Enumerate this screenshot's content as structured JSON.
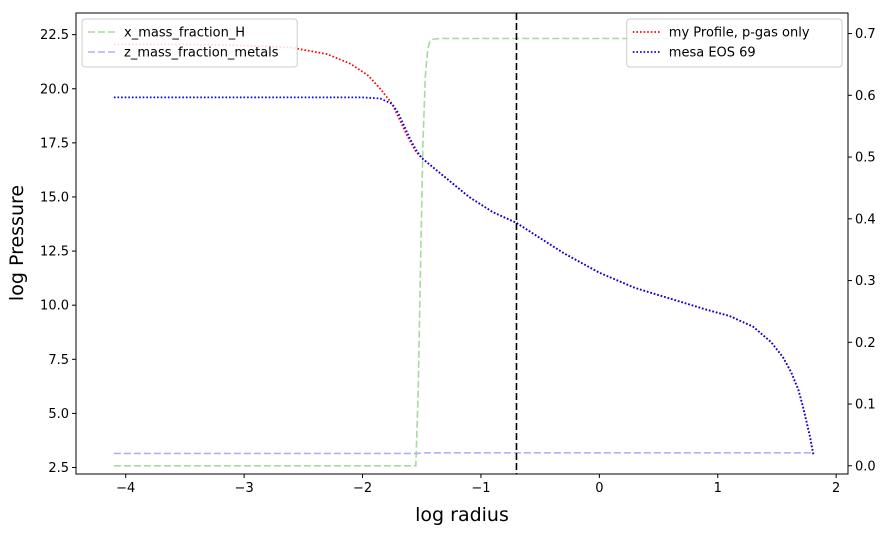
{
  "chart_data": {
    "type": "line",
    "xlabel": "log radius",
    "ylabel": "log Pressure",
    "y2label": "",
    "xlim": [
      -4.42,
      2.1
    ],
    "ylim": [
      2.2,
      23.5
    ],
    "y2lim": [
      -0.0133,
      0.7333
    ],
    "xticks": [
      -4,
      -3,
      -2,
      -1,
      0,
      1,
      2
    ],
    "xtick_labels": [
      "−4",
      "−3",
      "−2",
      "−1",
      "0",
      "1",
      "2"
    ],
    "yticks": [
      2.5,
      5.0,
      7.5,
      10.0,
      12.5,
      15.0,
      17.5,
      20.0,
      22.5
    ],
    "ytick_labels": [
      "2.5",
      "5.0",
      "7.5",
      "10.0",
      "12.5",
      "15.0",
      "17.5",
      "20.0",
      "22.5"
    ],
    "y2ticks": [
      0.0,
      0.1,
      0.2,
      0.3,
      0.4,
      0.5,
      0.6,
      0.7
    ],
    "y2tick_labels": [
      "0.0",
      "0.1",
      "0.2",
      "0.3",
      "0.4",
      "0.5",
      "0.6",
      "0.7"
    ],
    "grid": false,
    "vline": {
      "x": -0.7,
      "style": "dashed",
      "color": "#000000"
    },
    "left_series": [
      {
        "name": "my Profile, p-gas only",
        "color": "#ff0000",
        "style": "dotted",
        "axis": "left",
        "x": [
          -4.1,
          -3.5,
          -3.0,
          -2.6,
          -2.3,
          -2.1,
          -1.95,
          -1.85,
          -1.75,
          -1.68,
          -1.62,
          -1.55,
          -1.5,
          -1.3,
          -1.1,
          -0.9,
          -0.7,
          -0.5,
          -0.3,
          0.0,
          0.3,
          0.6,
          0.9,
          1.1,
          1.3,
          1.45,
          1.55,
          1.62,
          1.68,
          1.72,
          1.75,
          1.78,
          1.8,
          1.81
        ],
        "y": [
          22.05,
          22.05,
          22.0,
          21.9,
          21.6,
          21.15,
          20.6,
          20.0,
          19.3,
          18.5,
          17.8,
          17.1,
          16.8,
          15.9,
          15.0,
          14.3,
          13.8,
          13.1,
          12.4,
          11.5,
          10.8,
          10.3,
          9.8,
          9.5,
          9.0,
          8.3,
          7.6,
          6.9,
          6.1,
          5.3,
          4.6,
          3.9,
          3.3,
          3.05
        ]
      },
      {
        "name": "mesa EOS 69",
        "color": "#0000ff",
        "style": "dotted",
        "axis": "left",
        "x": [
          -4.1,
          -3.5,
          -3.0,
          -2.5,
          -2.0,
          -1.85,
          -1.75,
          -1.7,
          -1.65,
          -1.6,
          -1.55,
          -1.5,
          -1.3,
          -1.1,
          -0.9,
          -0.7,
          -0.5,
          -0.3,
          0.0,
          0.3,
          0.6,
          0.9,
          1.1,
          1.3,
          1.45,
          1.55,
          1.62,
          1.68,
          1.72,
          1.75,
          1.78,
          1.8,
          1.81
        ],
        "y": [
          19.6,
          19.6,
          19.6,
          19.6,
          19.6,
          19.55,
          19.3,
          18.9,
          18.3,
          17.7,
          17.2,
          16.8,
          15.9,
          15.0,
          14.3,
          13.8,
          13.1,
          12.4,
          11.5,
          10.8,
          10.3,
          9.8,
          9.5,
          9.0,
          8.3,
          7.6,
          6.9,
          6.1,
          5.3,
          4.6,
          3.9,
          3.3,
          3.05
        ]
      }
    ],
    "right_series": [
      {
        "name": "x_mass_fraction_H",
        "color": "#aad8a0",
        "style": "dashed",
        "axis": "right",
        "x": [
          -4.1,
          -1.55,
          -1.53,
          -1.51,
          -1.49,
          -1.47,
          -1.45,
          -1.43,
          -1.4,
          -1.35,
          1.81
        ],
        "y": [
          0.0,
          0.0,
          0.12,
          0.33,
          0.52,
          0.63,
          0.675,
          0.688,
          0.691,
          0.692,
          0.692
        ]
      },
      {
        "name": "z_mass_fraction_metals",
        "color": "#b0b0f5",
        "style": "dashed",
        "axis": "right",
        "x": [
          -4.1,
          -1.55,
          -1.45,
          1.81
        ],
        "y": [
          0.02,
          0.02,
          0.021,
          0.021
        ]
      }
    ],
    "legends": [
      {
        "placement": "top-left",
        "entries": [
          "x_mass_fraction_H",
          "z_mass_fraction_metals"
        ]
      },
      {
        "placement": "top-right",
        "entries": [
          "my Profile, p-gas only",
          "mesa EOS 69"
        ]
      }
    ]
  }
}
